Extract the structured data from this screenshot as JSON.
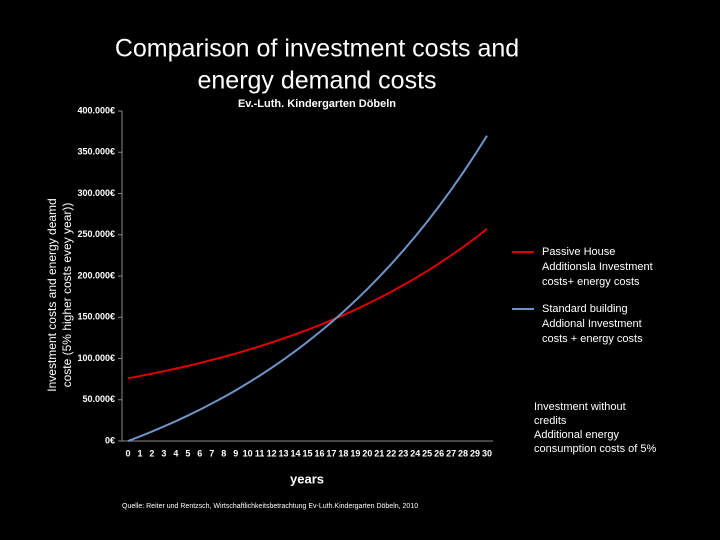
{
  "chart_data": {
    "type": "line",
    "title": [
      "Comparison of investment costs and",
      "energy demand costs"
    ],
    "subtitle": "Ev.-Luth. Kindergarten Döbeln",
    "y_label": [
      "Investment costs and energy deamd",
      "coste (5% higher costs evey year))"
    ],
    "x_label": "years",
    "source": "Quelle: Reiter und Rentzsch, Wirtschaftlichkeitsbetrachtung  Ev-Luth.Kindergarten Döbeln,  2010",
    "annotation": [
      "Investment without",
      "credits",
      "Additional energy",
      "consumption costs of 5%"
    ],
    "categories": [
      "0",
      "1",
      "2",
      "3",
      "4",
      "5",
      "6",
      "7",
      "8",
      "9",
      "10",
      "11",
      "12",
      "13",
      "14",
      "15",
      "16",
      "17",
      "18",
      "19",
      "20",
      "21",
      "22",
      "23",
      "24",
      "25",
      "26",
      "27",
      "28",
      "29",
      "30"
    ],
    "series": [
      {
        "name": [
          "Passive House",
          "Additionsla Investment",
          "costs+ energy costs"
        ],
        "color": "#e00000",
        "values": [
          76000,
          78700,
          81600,
          84600,
          87700,
          91100,
          94500,
          98200,
          102000,
          106000,
          110300,
          114700,
          119400,
          124300,
          129400,
          134800,
          140400,
          146400,
          152600,
          159200,
          166100,
          173300,
          180900,
          188900,
          197200,
          206000,
          215200,
          224900,
          235100,
          245800,
          257000
        ]
      },
      {
        "name": [
          "Standard building",
          "Addional Investment",
          "costs + energy costs"
        ],
        "color": "#6f95c8",
        "values": [
          0,
          5600,
          11400,
          17600,
          24000,
          30800,
          37900,
          45400,
          53200,
          61400,
          70100,
          79100,
          88700,
          98700,
          109200,
          120200,
          131800,
          143900,
          156700,
          170100,
          184200,
          199000,
          214500,
          230800,
          247900,
          265800,
          284700,
          304500,
          325300,
          347100,
          370100
        ]
      }
    ],
    "ylim": [
      0,
      400000
    ],
    "yticks": [
      {
        "value": 0,
        "label": "0€"
      },
      {
        "value": 50000,
        "label": "50.000€"
      },
      {
        "value": 100000,
        "label": "100.000€"
      },
      {
        "value": 150000,
        "label": "150.000€"
      },
      {
        "value": 200000,
        "label": "200.000€"
      },
      {
        "value": 250000,
        "label": "250.000€"
      },
      {
        "value": 300000,
        "label": "300.000€"
      },
      {
        "value": 350000,
        "label": "350.000€"
      },
      {
        "value": 400000,
        "label": "400.000€"
      }
    ],
    "grid": false
  }
}
